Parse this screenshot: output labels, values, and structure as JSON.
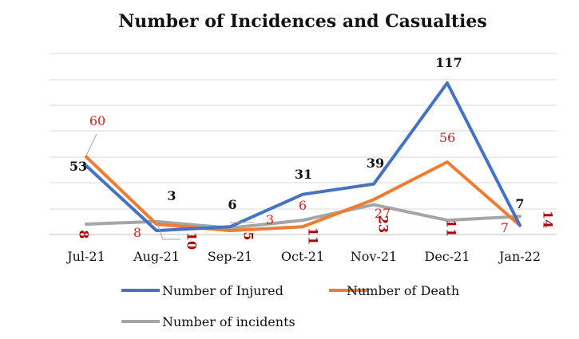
{
  "chart_data": {
    "type": "line",
    "title": "Number of Incidences and Casualties",
    "categories": [
      "Jul-21",
      "Aug-21",
      "Sep-21",
      "Oct-21",
      "Nov-21",
      "Dec-21",
      "Jan-22"
    ],
    "series": [
      {
        "name": "Number of Injured",
        "color": "#4472C4",
        "values": [
          53,
          3,
          6,
          31,
          39,
          117,
          7
        ]
      },
      {
        "name": "Number of Death",
        "color": "#ED7D31",
        "values": [
          60,
          8,
          3,
          6,
          27,
          56,
          7
        ]
      },
      {
        "name": "Number of incidents",
        "color": "#A5A5A5",
        "values": [
          8,
          10,
          5,
          11,
          23,
          11,
          14
        ]
      }
    ],
    "ylim": [
      0,
      130
    ],
    "grid": true,
    "legend_position": "bottom"
  }
}
